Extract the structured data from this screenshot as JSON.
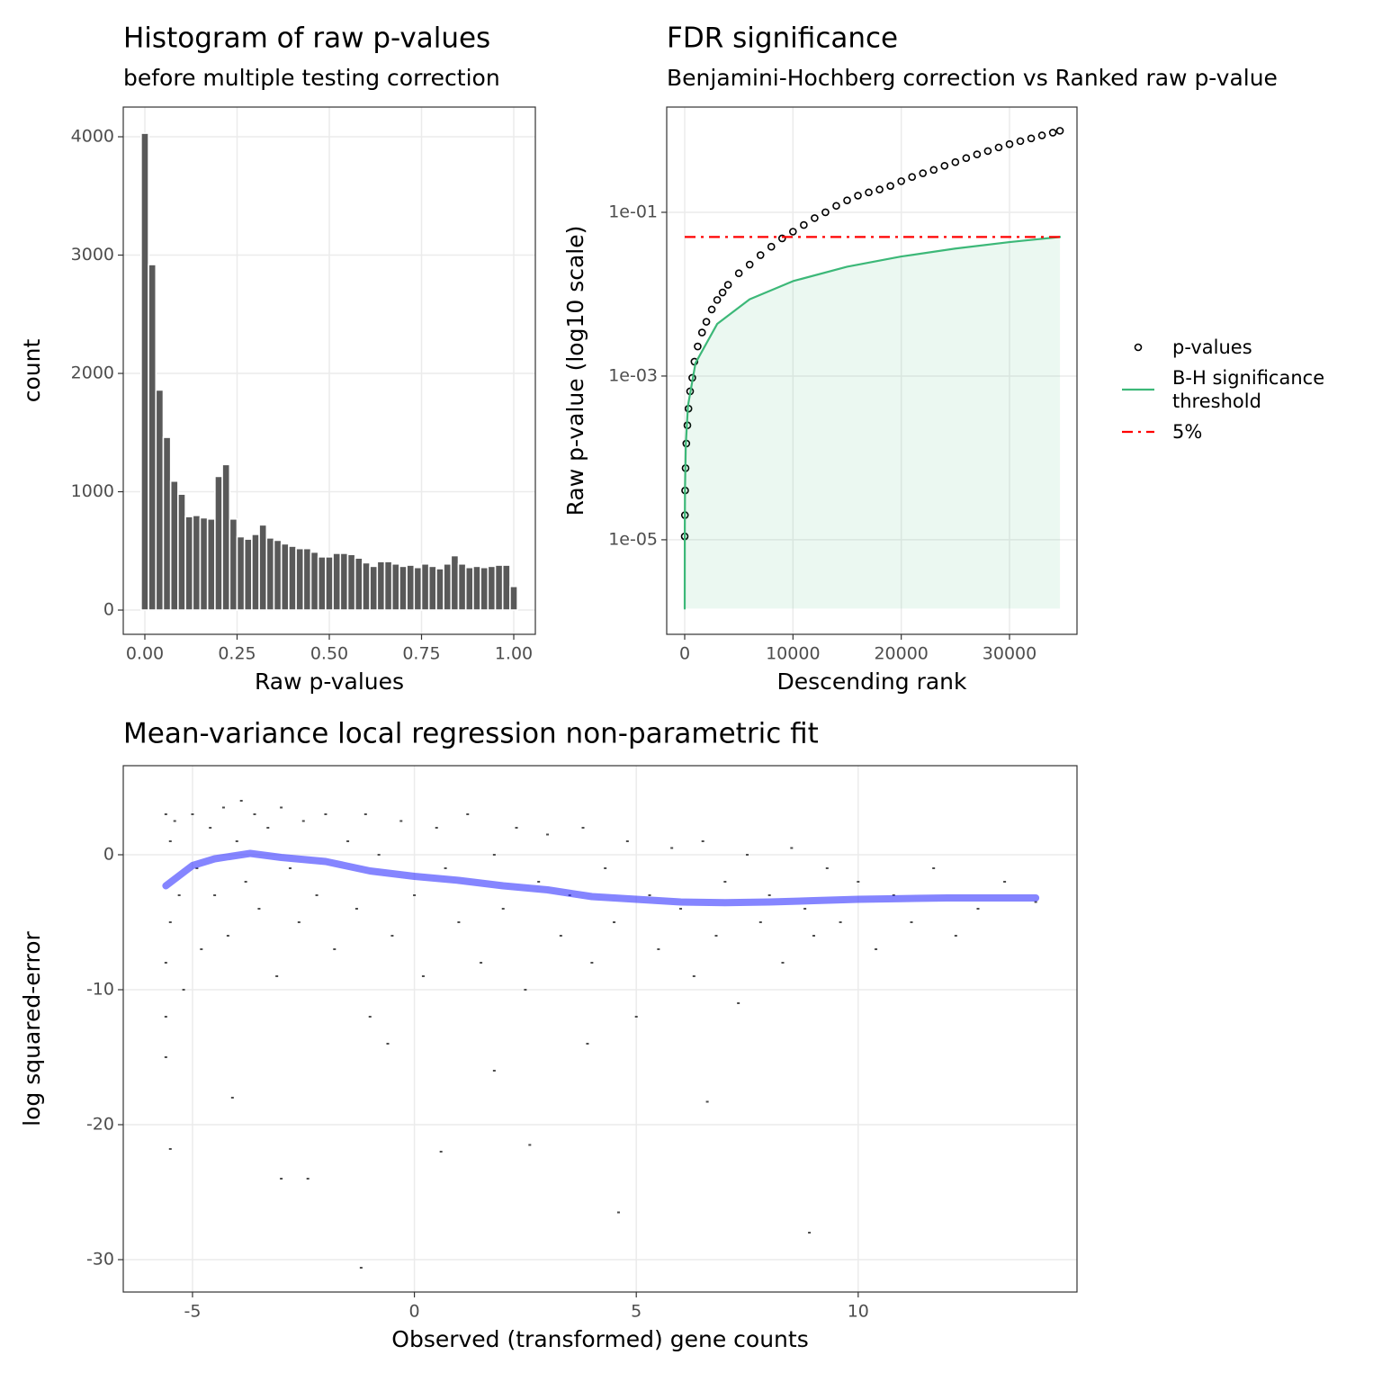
{
  "chart_data": [
    {
      "type": "histogram",
      "title": "Histogram of raw p-values",
      "subtitle": "before multiple testing correction",
      "xlabel": "Raw p-values",
      "ylabel": "count",
      "color": "#595959",
      "bins": [
        -0.01,
        0.01,
        0.03,
        0.05,
        0.07,
        0.09,
        0.11,
        0.13,
        0.15,
        0.17,
        0.19,
        0.21,
        0.23,
        0.25,
        0.27,
        0.29,
        0.31,
        0.33,
        0.35,
        0.37,
        0.39,
        0.41,
        0.43,
        0.45,
        0.47,
        0.49,
        0.51,
        0.53,
        0.55,
        0.57,
        0.59,
        0.61,
        0.63,
        0.65,
        0.67,
        0.69,
        0.71,
        0.73,
        0.75,
        0.77,
        0.79,
        0.81,
        0.83,
        0.85,
        0.87,
        0.89,
        0.91,
        0.93,
        0.95,
        0.97,
        0.99,
        1.01
      ],
      "values": [
        4030,
        2920,
        1860,
        1460,
        1090,
        980,
        790,
        800,
        780,
        770,
        1130,
        1230,
        770,
        620,
        600,
        640,
        720,
        610,
        590,
        560,
        540,
        520,
        520,
        490,
        450,
        450,
        480,
        480,
        470,
        440,
        400,
        370,
        410,
        410,
        390,
        370,
        380,
        360,
        390,
        370,
        350,
        390,
        460,
        390,
        360,
        370,
        360,
        370,
        380,
        380,
        200
      ],
      "xlim": [
        -0.0585,
        1.0585
      ],
      "xticks": [
        {
          "value": 0,
          "label": "0.00"
        },
        {
          "value": 0.25,
          "label": "0.25"
        },
        {
          "value": 0.5,
          "label": "0.50"
        },
        {
          "value": 0.75,
          "label": "0.75"
        },
        {
          "value": 1,
          "label": "1.00"
        }
      ],
      "ylim": [
        -205,
        4251
      ],
      "yticks": [
        0,
        1000,
        2000,
        3000,
        4000
      ],
      "grid": true
    },
    {
      "type": "scatter",
      "title": "FDR significance",
      "subtitle": "Benjamini-Hochberg correction vs Ranked raw p-value",
      "xlabel": "Descending rank",
      "ylabel": "Raw p-value (log10 scale)",
      "ylog": true,
      "legend": "right",
      "series": [
        {
          "name": "p-values",
          "color": "#000000",
          "marker": "circle",
          "x": [
            0,
            20,
            40,
            80,
            150,
            250,
            350,
            500,
            700,
            900,
            1200,
            1600,
            2000,
            2500,
            3000,
            3500,
            4000,
            5000,
            6000,
            7000,
            8000,
            9000,
            10000,
            11000,
            12000,
            13000,
            14000,
            15000,
            16000,
            17000,
            18000,
            19000,
            20000,
            21000,
            22000,
            23000,
            24000,
            25000,
            26000,
            27000,
            28000,
            29000,
            30000,
            31000,
            32000,
            33000,
            34000,
            34660
          ],
          "values": [
            1.1e-05,
            2e-05,
            4e-05,
            7.5e-05,
            0.00015,
            0.00025,
            0.0004,
            0.00065,
            0.00095,
            0.0015,
            0.0023,
            0.0034,
            0.0046,
            0.0065,
            0.0085,
            0.0105,
            0.013,
            0.018,
            0.023,
            0.03,
            0.038,
            0.048,
            0.058,
            0.07,
            0.085,
            0.1,
            0.12,
            0.14,
            0.16,
            0.175,
            0.19,
            0.21,
            0.24,
            0.27,
            0.3,
            0.33,
            0.37,
            0.41,
            0.46,
            0.51,
            0.56,
            0.62,
            0.68,
            0.74,
            0.8,
            0.87,
            0.94,
            0.99
          ]
        },
        {
          "name": "B-H significance threshold",
          "color": "#3cb878",
          "line": "solid",
          "fill": true,
          "x": [
            1,
            10,
            30,
            100,
            300,
            1000,
            3000,
            6000,
            10000,
            15000,
            20000,
            25000,
            30000,
            34660
          ],
          "values": [
            1.443e-06,
            1.443e-05,
            4.33e-05,
            0.0001443,
            0.000433,
            0.001443,
            0.00433,
            0.00866,
            0.01443,
            0.02164,
            0.02885,
            0.03607,
            0.04328,
            0.05
          ]
        },
        {
          "name": "5%",
          "color": "#ff0000",
          "line": "dashdot",
          "values": [
            0.05
          ]
        }
      ],
      "xlim": [
        -1662,
        36233
      ],
      "xticks": [
        0,
        10000,
        20000,
        30000
      ],
      "ylim": [
        7e-07,
        1.93
      ],
      "yticks": [
        {
          "value": 1e-05,
          "label": "1e-05"
        },
        {
          "value": 0.001,
          "label": "1e-03"
        },
        {
          "value": 0.1,
          "label": "1e-01"
        }
      ],
      "grid": true
    },
    {
      "type": "scatter",
      "title": "Mean-variance local regression non-parametric fit",
      "xlabel": "Observed (transformed)  gene counts",
      "ylabel": "log squared-error",
      "series": [
        {
          "color": "#4d4d4d",
          "marker": "point",
          "x": [
            -5.6,
            -5.6,
            -5.6,
            -5.5,
            -5.5,
            -5.4,
            -5.3,
            -5.2,
            -5.0,
            -4.9,
            -4.8,
            -4.6,
            -4.5,
            -4.3,
            -4.2,
            -4.0,
            -3.8,
            -3.6,
            -3.5,
            -3.3,
            -3.1,
            -3.0,
            -2.8,
            -2.6,
            -2.5,
            -2.2,
            -2.0,
            -1.8,
            -1.5,
            -1.3,
            -1.1,
            -1.0,
            -0.8,
            -0.5,
            -0.3,
            0.0,
            0.2,
            0.5,
            0.7,
            1.0,
            1.2,
            1.5,
            1.8,
            2.0,
            2.3,
            2.5,
            2.8,
            3.0,
            3.3,
            3.5,
            3.8,
            4.0,
            4.3,
            4.5,
            4.8,
            5.0,
            5.3,
            5.5,
            5.8,
            6.0,
            6.3,
            6.5,
            6.8,
            7.0,
            7.3,
            7.5,
            7.8,
            8.0,
            8.3,
            8.5,
            8.8,
            9.0,
            9.3,
            9.6,
            10.0,
            10.4,
            10.8,
            11.2,
            11.7,
            12.2,
            12.7,
            13.3,
            14.0,
            -5.6,
            -4.1,
            -2.4,
            0.6,
            2.6,
            4.6,
            6.6,
            -5.5,
            -3.0,
            1.8,
            3.9,
            -1.2,
            8.9,
            -3.9,
            -0.6
          ],
          "values": [
            3,
            -8,
            -12,
            1,
            -5,
            2.5,
            -3,
            -10,
            3,
            -1,
            -7,
            2,
            -3,
            3.5,
            -6,
            1,
            -2,
            3,
            -4,
            2,
            -9,
            3.5,
            -1,
            -5,
            2.5,
            -3,
            3,
            -7,
            1,
            -4,
            3,
            -12,
            0,
            -6,
            2.5,
            -3,
            -9,
            2,
            -1,
            -5,
            3,
            -8,
            0,
            -4,
            2,
            -10,
            -2,
            1.5,
            -6,
            -3,
            2,
            -8,
            -1,
            -5,
            1,
            -12,
            -3,
            -7,
            0.5,
            -4,
            -9,
            1,
            -6,
            -2,
            -11,
            0,
            -5,
            -3,
            -8,
            0.5,
            -4,
            -6,
            -1,
            -5,
            -2,
            -7,
            -3,
            -5,
            -1,
            -6,
            -4,
            -2,
            -3.5,
            -15,
            -18,
            -24,
            -22,
            -21.5,
            -26.5,
            -18.3,
            -21.8,
            -24,
            -16,
            -14,
            -30.6,
            -28,
            4,
            -14
          ]
        },
        {
          "color": "#3333ff",
          "line": "thick",
          "x": [
            -5.6,
            -5.0,
            -4.5,
            -3.7,
            -3.0,
            -2.0,
            -1.0,
            0,
            1,
            2,
            3,
            4,
            5,
            6,
            7,
            8,
            9,
            10,
            11,
            12,
            13,
            14
          ],
          "values": [
            -2.3,
            -0.8,
            -0.3,
            0.1,
            -0.2,
            -0.5,
            -1.2,
            -1.6,
            -1.9,
            -2.3,
            -2.6,
            -3.1,
            -3.3,
            -3.5,
            -3.55,
            -3.5,
            -3.4,
            -3.3,
            -3.25,
            -3.2,
            -3.2,
            -3.2
          ]
        }
      ],
      "xlim": [
        -6.56,
        14.93
      ],
      "xticks": [
        -5,
        0,
        5,
        10
      ],
      "ylim": [
        -32.4,
        6.6
      ],
      "yticks": [
        -30,
        -20,
        -10,
        0
      ],
      "grid": true
    }
  ]
}
